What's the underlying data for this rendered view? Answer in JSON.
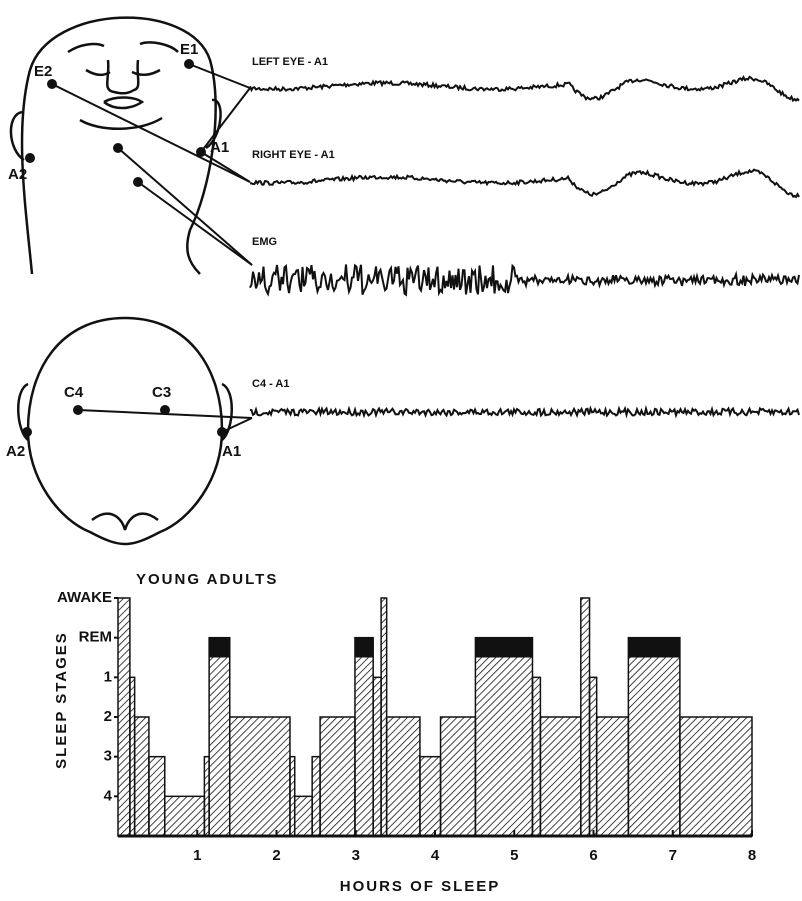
{
  "diagram": {
    "face_electrodes": [
      "E1",
      "E2",
      "A1",
      "A2"
    ],
    "scalp_electrodes": [
      "C4",
      "C3",
      "A2",
      "A1"
    ],
    "traces": [
      "LEFT EYE - A1",
      "RIGHT EYE - A1",
      "EMG",
      "C4 - A1"
    ]
  },
  "chart_data": {
    "type": "step",
    "title": "YOUNG ADULTS",
    "x_label": "HOURS OF SLEEP",
    "y_label": "SLEEP STAGES",
    "x": [
      0,
      0.15,
      0.21,
      0.39,
      0.59,
      1.09,
      1.15,
      1.41,
      2.17,
      2.23,
      2.45,
      2.55,
      2.99,
      3.22,
      3.32,
      3.39,
      3.81,
      4.07,
      4.51,
      5.23,
      5.33,
      5.84,
      5.95,
      6.04,
      6.44,
      7.09
    ],
    "values": [
      0,
      2,
      3,
      4,
      5,
      4,
      1,
      3,
      4,
      5,
      4,
      3,
      1,
      2,
      0,
      3,
      4,
      3,
      1,
      2,
      3,
      0,
      2,
      3,
      1,
      3
    ],
    "xlim": [
      0,
      8
    ],
    "ylim": [
      6,
      0
    ],
    "xticks": [
      1,
      2,
      3,
      4,
      5,
      6,
      7,
      8
    ],
    "yticks": [
      {
        "value": 0,
        "label": "AWAKE"
      },
      {
        "value": 1,
        "label": "REM"
      },
      {
        "value": 2,
        "label": "1"
      },
      {
        "value": 3,
        "label": "2"
      },
      {
        "value": 4,
        "label": "3"
      },
      {
        "value": 5,
        "label": "4"
      }
    ],
    "color": "#111111"
  }
}
